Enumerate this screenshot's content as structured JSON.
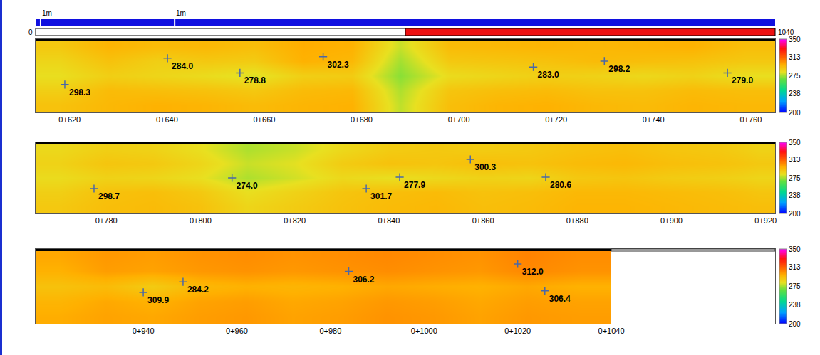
{
  "scale_labels": [
    "1m",
    "1m"
  ],
  "overview": {
    "range": [
      0,
      1040
    ],
    "marked_from": 520
  },
  "chart_data": [
    {
      "type": "heatmap",
      "xlim": [
        613,
        765
      ],
      "ylim": [
        0,
        5
      ],
      "tick_labels": "x",
      "xticks": [
        {
          "value": 620,
          "label": "0+620"
        },
        {
          "value": 640,
          "label": "0+640"
        },
        {
          "value": 660,
          "label": "0+660"
        },
        {
          "value": 680,
          "label": "0+680"
        },
        {
          "value": 700,
          "label": "0+700"
        },
        {
          "value": 720,
          "label": "0+720"
        },
        {
          "value": 740,
          "label": "0+740"
        },
        {
          "value": 760,
          "label": "0+760"
        }
      ],
      "cells": {
        "x_edges": [
          613,
          623,
          633,
          643,
          653,
          663,
          673,
          683,
          693,
          703,
          713,
          723,
          733,
          743,
          753,
          765
        ],
        "y_edges": [
          0,
          1,
          2,
          3,
          4,
          5
        ],
        "z": [
          [
            292,
            295,
            297,
            296,
            294,
            296,
            297,
            278,
            293,
            296,
            297,
            295,
            294,
            296,
            295
          ],
          [
            288,
            294,
            293,
            292,
            290,
            294,
            295,
            276,
            291,
            293,
            294,
            292,
            292,
            294,
            293
          ],
          [
            283,
            288,
            286,
            284,
            281,
            288,
            289,
            272,
            284,
            286,
            288,
            287,
            285,
            287,
            283
          ],
          [
            286,
            292,
            288,
            290,
            289,
            297,
            295,
            275,
            290,
            291,
            292,
            294,
            293,
            292,
            290
          ],
          [
            290,
            296,
            294,
            295,
            293,
            298,
            297,
            279,
            294,
            295,
            296,
            295,
            296,
            297,
            293
          ]
        ]
      },
      "colorbar": {
        "range": [
          200,
          350
        ],
        "ticks": [
          200,
          238,
          275,
          313,
          350
        ]
      },
      "points": {
        "x": [
          619.0,
          640.1,
          655.0,
          672.1,
          715.3,
          729.9,
          755.2
        ],
        "y": [
          1.9,
          3.7,
          2.7,
          3.8,
          3.1,
          3.5,
          2.7
        ],
        "values": [
          298.3,
          284.0,
          278.8,
          302.3,
          283.0,
          298.2,
          279.0
        ],
        "value_labels": [
          "298.3",
          "284.0",
          "278.8",
          "302.3",
          "283.0",
          "298.2",
          "279.0"
        ]
      }
    },
    {
      "type": "heatmap",
      "xlim": [
        765,
        922
      ],
      "ylim": [
        0,
        5
      ],
      "tick_labels": "x",
      "xticks": [
        {
          "value": 780,
          "label": "0+780"
        },
        {
          "value": 800,
          "label": "0+800"
        },
        {
          "value": 820,
          "label": "0+820"
        },
        {
          "value": 840,
          "label": "0+840"
        },
        {
          "value": 860,
          "label": "0+860"
        },
        {
          "value": 880,
          "label": "0+880"
        },
        {
          "value": 900,
          "label": "0+900"
        },
        {
          "value": 920,
          "label": "0+920"
        }
      ],
      "cells": {
        "x_edges": [
          765,
          775,
          785,
          795,
          805,
          815,
          825,
          835,
          845,
          855,
          865,
          875,
          885,
          895,
          905,
          915,
          922
        ],
        "y_edges": [
          0,
          1,
          2,
          3,
          4,
          5
        ],
        "z": [
          [
            290,
            293,
            294,
            292,
            286,
            289,
            292,
            294,
            295,
            293,
            294,
            296,
            296,
            295,
            294,
            293
          ],
          [
            288,
            292,
            293,
            290,
            283,
            287,
            291,
            293,
            294,
            292,
            293,
            295,
            295,
            294,
            293,
            291
          ],
          [
            284,
            287,
            286,
            283,
            276,
            280,
            285,
            283,
            285,
            287,
            286,
            290,
            291,
            289,
            288,
            286
          ],
          [
            287,
            291,
            290,
            286,
            279,
            282,
            289,
            292,
            291,
            293,
            292,
            294,
            295,
            293,
            292,
            290
          ],
          [
            285,
            288,
            287,
            283,
            276,
            279,
            285,
            289,
            290,
            289,
            290,
            292,
            293,
            291,
            290,
            287
          ]
        ]
      },
      "colorbar": {
        "range": [
          200,
          350
        ],
        "ticks": [
          200,
          238,
          275,
          313,
          350
        ]
      },
      "points": {
        "x": [
          777.4,
          806.7,
          835.2,
          842.3,
          857.3,
          873.3
        ],
        "y": [
          1.75,
          2.5,
          1.75,
          2.55,
          3.8,
          2.55
        ],
        "values": [
          298.7,
          274.0,
          301.7,
          277.9,
          300.3,
          280.6
        ],
        "value_labels": [
          "298.7",
          "274.0",
          "301.7",
          "277.9",
          "300.3",
          "280.6"
        ]
      }
    },
    {
      "type": "heatmap",
      "xlim": [
        917,
        1075
      ],
      "ylim": [
        0,
        5
      ],
      "tick_labels": "x",
      "xticks": [
        {
          "value": 940,
          "label": "0+940"
        },
        {
          "value": 960,
          "label": "0+960"
        },
        {
          "value": 980,
          "label": "0+980"
        },
        {
          "value": 1000,
          "label": "0+1000"
        },
        {
          "value": 1020,
          "label": "0+1020"
        },
        {
          "value": 1040,
          "label": "0+1040"
        }
      ],
      "cells": {
        "x_edges": [
          917,
          927,
          937,
          947,
          957,
          967,
          977,
          987,
          997,
          1007,
          1017,
          1027,
          1040
        ],
        "y_edges": [
          0,
          1,
          2,
          3,
          4,
          5
        ],
        "z": [
          [
            298,
            300,
            299,
            301,
            302,
            300,
            301,
            303,
            302,
            300,
            302,
            301
          ],
          [
            296,
            299,
            297,
            300,
            301,
            299,
            300,
            302,
            301,
            299,
            301,
            300
          ],
          [
            292,
            294,
            289,
            295,
            297,
            296,
            297,
            299,
            298,
            297,
            299,
            297
          ],
          [
            297,
            301,
            300,
            302,
            303,
            302,
            303,
            304,
            303,
            302,
            305,
            303
          ],
          [
            299,
            302,
            301,
            303,
            304,
            303,
            304,
            305,
            304,
            303,
            306,
            304
          ]
        ]
      },
      "colorbar": {
        "range": [
          200,
          350
        ],
        "ticks": [
          200,
          238,
          275,
          313,
          350
        ]
      },
      "points": {
        "x": [
          940.0,
          948.5,
          983.9,
          1020.0,
          1025.8
        ],
        "y": [
          2.1,
          2.8,
          3.5,
          4.0,
          2.2
        ],
        "values": [
          309.9,
          284.2,
          306.2,
          312.0,
          306.4
        ],
        "value_labels": [
          "309.9",
          "284.2",
          "306.2",
          "312.0",
          "306.4"
        ]
      }
    }
  ]
}
